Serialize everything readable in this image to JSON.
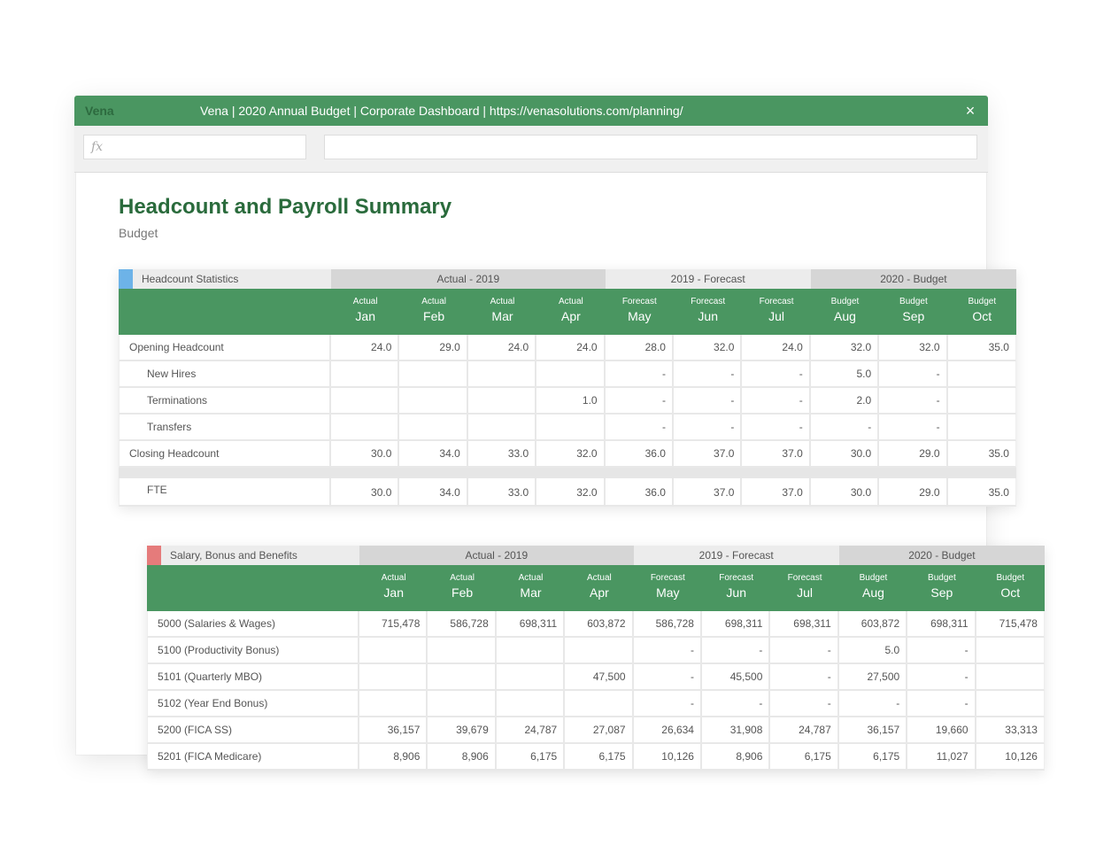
{
  "window": {
    "brand": "Vena",
    "title": "Vena | 2020 Annual Budget | Corporate Dashboard | https://venasolutions.com/planning/",
    "close_icon": "×"
  },
  "formula_bar": {
    "fx_placeholder": "fx",
    "expression": ""
  },
  "page": {
    "title": "Headcount and Payroll Summary",
    "subtitle": "Budget"
  },
  "colors": {
    "accent_green": "#4a9661",
    "title_green": "#2a6b3c",
    "headcount_swatch": "#6db3e8",
    "salary_swatch": "#e57b7b"
  },
  "tables": [
    {
      "section": "Headcount Statistics",
      "swatch_color": "#6db3e8",
      "groups": [
        "Actual - 2019",
        "2019 - Forecast",
        "2020 - Budget"
      ],
      "columns": [
        {
          "type": "Actual",
          "month": "Jan"
        },
        {
          "type": "Actual",
          "month": "Feb"
        },
        {
          "type": "Actual",
          "month": "Mar"
        },
        {
          "type": "Actual",
          "month": "Apr"
        },
        {
          "type": "Forecast",
          "month": "May"
        },
        {
          "type": "Forecast",
          "month": "Jun"
        },
        {
          "type": "Forecast",
          "month": "Jul"
        },
        {
          "type": "Budget",
          "month": "Aug"
        },
        {
          "type": "Budget",
          "month": "Sep"
        },
        {
          "type": "Budget",
          "month": "Oct"
        }
      ],
      "rows": [
        {
          "label": "Opening Headcount",
          "indent": false,
          "values": [
            "24.0",
            "29.0",
            "24.0",
            "24.0",
            "28.0",
            "32.0",
            "24.0",
            "32.0",
            "32.0",
            "35.0"
          ]
        },
        {
          "label": "New Hires",
          "indent": true,
          "values": [
            "",
            "",
            "",
            "",
            "-",
            "-",
            "-",
            "5.0",
            "-",
            ""
          ]
        },
        {
          "label": "Terminations",
          "indent": true,
          "values": [
            "",
            "",
            "",
            "1.0",
            "-",
            "-",
            "-",
            "2.0",
            "-",
            ""
          ]
        },
        {
          "label": "Transfers",
          "indent": true,
          "values": [
            "",
            "",
            "",
            "",
            "-",
            "-",
            "-",
            "-",
            "-",
            ""
          ]
        },
        {
          "label": "Closing Headcount",
          "indent": false,
          "values": [
            "30.0",
            "34.0",
            "33.0",
            "32.0",
            "36.0",
            "37.0",
            "37.0",
            "30.0",
            "29.0",
            "35.0"
          ]
        },
        {
          "gap": true
        },
        {
          "label": "FTE",
          "indent": true,
          "fte": true,
          "values": [
            "30.0",
            "34.0",
            "33.0",
            "32.0",
            "36.0",
            "37.0",
            "37.0",
            "30.0",
            "29.0",
            "35.0"
          ]
        }
      ]
    },
    {
      "section": "Salary, Bonus and Benefits",
      "swatch_color": "#e57b7b",
      "groups": [
        "Actual - 2019",
        "2019 - Forecast",
        "2020 - Budget"
      ],
      "columns": [
        {
          "type": "Actual",
          "month": "Jan"
        },
        {
          "type": "Actual",
          "month": "Feb"
        },
        {
          "type": "Actual",
          "month": "Mar"
        },
        {
          "type": "Actual",
          "month": "Apr"
        },
        {
          "type": "Forecast",
          "month": "May"
        },
        {
          "type": "Forecast",
          "month": "Jun"
        },
        {
          "type": "Forecast",
          "month": "Jul"
        },
        {
          "type": "Budget",
          "month": "Aug"
        },
        {
          "type": "Budget",
          "month": "Sep"
        },
        {
          "type": "Budget",
          "month": "Oct"
        }
      ],
      "rows": [
        {
          "label": "5000 (Salaries & Wages)",
          "indent": false,
          "values": [
            "715,478",
            "586,728",
            "698,311",
            "603,872",
            "586,728",
            "698,311",
            "698,311",
            "603,872",
            "698,311",
            "715,478"
          ]
        },
        {
          "label": "5100 (Productivity Bonus)",
          "indent": false,
          "values": [
            "",
            "",
            "",
            "",
            "-",
            "-",
            "-",
            "5.0",
            "-",
            ""
          ]
        },
        {
          "label": "5101 (Quarterly MBO)",
          "indent": false,
          "values": [
            "",
            "",
            "",
            "47,500",
            "-",
            "45,500",
            "-",
            "27,500",
            "-",
            ""
          ]
        },
        {
          "label": "5102 (Year End Bonus)",
          "indent": false,
          "values": [
            "",
            "",
            "",
            "",
            "-",
            "-",
            "-",
            "-",
            "-",
            ""
          ]
        },
        {
          "label": "5200 (FICA SS)",
          "indent": false,
          "values": [
            "36,157",
            "39,679",
            "24,787",
            "27,087",
            "26,634",
            "31,908",
            "24,787",
            "36,157",
            "19,660",
            "33,313"
          ]
        },
        {
          "label": "5201 (FICA Medicare)",
          "indent": false,
          "values": [
            "8,906",
            "8,906",
            "6,175",
            "6,175",
            "10,126",
            "8,906",
            "6,175",
            "6,175",
            "11,027",
            "10,126"
          ]
        }
      ]
    }
  ]
}
